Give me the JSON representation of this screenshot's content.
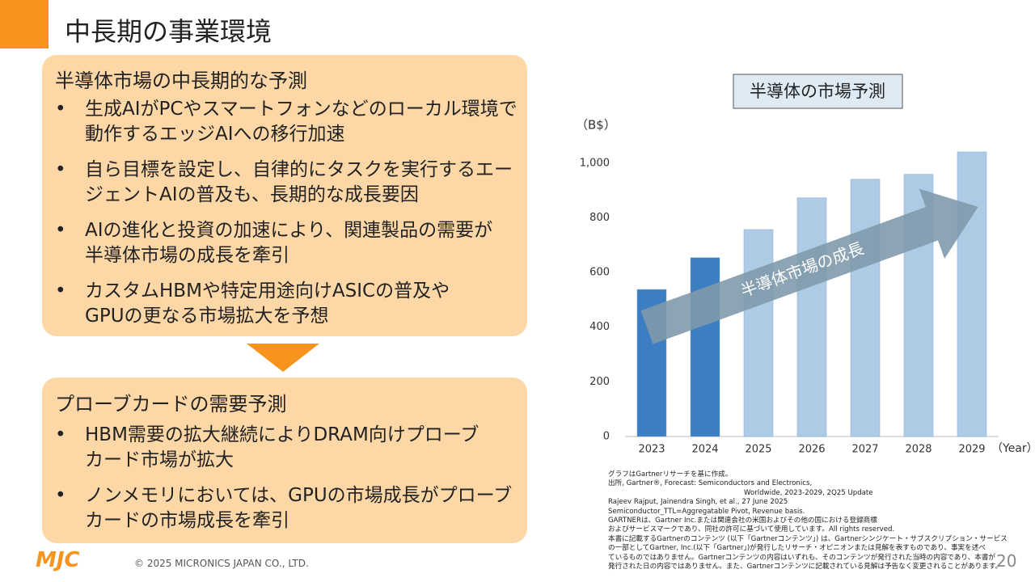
{
  "header": {
    "title": "中長期の事業環境"
  },
  "market_box": {
    "heading": "半導体市場の中長期的な予測",
    "bullets": [
      [
        "生成AIがPCやスマートフォンなどのローカル環境で",
        "動作するエッジAIへの移行加速"
      ],
      [
        "自ら目標を設定し、自律的にタスクを実行するエー",
        "ジェントAIの普及も、長期的な成長要因"
      ],
      [
        "AIの進化と投資の加速により、関連製品の需要が",
        "半導体市場の成長を牽引"
      ],
      [
        "カスタムHBMや特定用途向けASICの普及や",
        "GPUの更なる市場拡大を予想"
      ]
    ]
  },
  "probe_box": {
    "heading": "プローブカードの需要予測",
    "bullets": [
      [
        "HBM需要の拡大継続によりDRAM向けプローブ",
        "カード市場が拡大"
      ],
      [
        "ノンメモリにおいては、GPUの市場成長がプローブ",
        "カードの市場成長を牽引"
      ]
    ]
  },
  "chart_data": {
    "type": "bar",
    "title": "半導体の市場予測",
    "y_label": "（B$）",
    "x_label": "（Year）",
    "annotation": "半導体市場の成長",
    "categories": [
      "2023",
      "2024",
      "2025",
      "2026",
      "2027",
      "2028",
      "2029"
    ],
    "values": [
      538,
      654,
      757,
      873,
      941,
      959,
      1041
    ],
    "colors": [
      "#3b7fc2",
      "#3b7fc2",
      "#aecbe6",
      "#aecbe6",
      "#aecbe6",
      "#aecbe6",
      "#aecbe6"
    ],
    "ylim": [
      0,
      1100
    ],
    "yticks": [
      0,
      200,
      400,
      600,
      800,
      {
        "value": 1000,
        "label": "1,000"
      }
    ]
  },
  "footnotes": [
    "グラフはGartnerリサーチを基に作成。",
    "出所, Gartner®, Forecast: Semiconductors and Electronics,",
    "Worldwide, 2023-2029, 2Q25 Update",
    "Rajeev Rajput, Jainendra Singh, et al., 27 June 2025",
    "Semiconductor_TTL=Aggregatable Pivot, Revenue basis.",
    "GARTNERは、Gartner Inc.または関連会社の米国およびその他の国における登録商標",
    "およびサービスマークであり、同社の許可に基づいて使用しています。All rights reserved.",
    "本書に記載するGartnerのコンテンツ (以下「Gartnerコンテンツ」) は、Gartnerシンジケート・サブスクリプション・サービス",
    "の一部としてGartner, Inc.(以下「Gartner」)が発行したリサーチ・オピニオンまたは見解を表すものであり、事実を述べ",
    "ているものではありません。Gartnerコンテンツの内容はいずれも、そのコンテンツが発行された当時の内容であり、本書が",
    "発行された日の内容ではありません。また、Gartnerコンテンツに記載されている見解は予告なく変更されることがあります。"
  ],
  "footer": {
    "logo": "MJC",
    "copyright": "© 2025 MICRONICS JAPAN CO., LTD.",
    "page": "20"
  }
}
